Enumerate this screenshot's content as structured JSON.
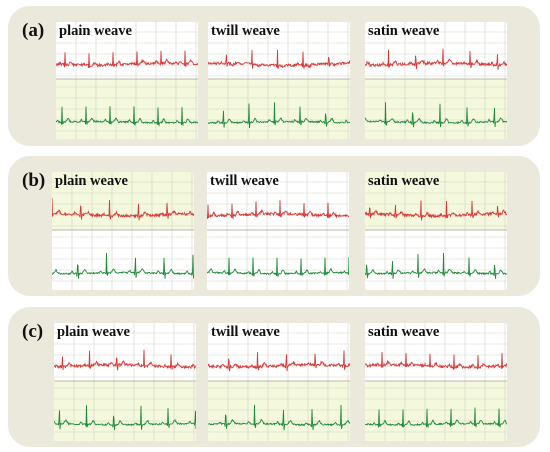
{
  "groups": [
    {
      "label": "(a)",
      "panels": [
        {
          "label": "plain weave"
        },
        {
          "label": "twill weave"
        },
        {
          "label": "satin weave"
        }
      ]
    },
    {
      "label": "(b)",
      "panels": [
        {
          "label": "plain weave"
        },
        {
          "label": "twill weave"
        },
        {
          "label": "satin weave"
        }
      ]
    },
    {
      "label": "(c)",
      "panels": [
        {
          "label": "plain weave"
        },
        {
          "label": "twill weave"
        },
        {
          "label": "satin weave"
        }
      ]
    }
  ],
  "colors": {
    "group_background": "#ebe8dc",
    "upper_trace": "#d93a3a",
    "lower_trace": "#1f8a3a",
    "grid_white": "#ffffff",
    "grid_yellow": "#f4f8dc"
  }
}
